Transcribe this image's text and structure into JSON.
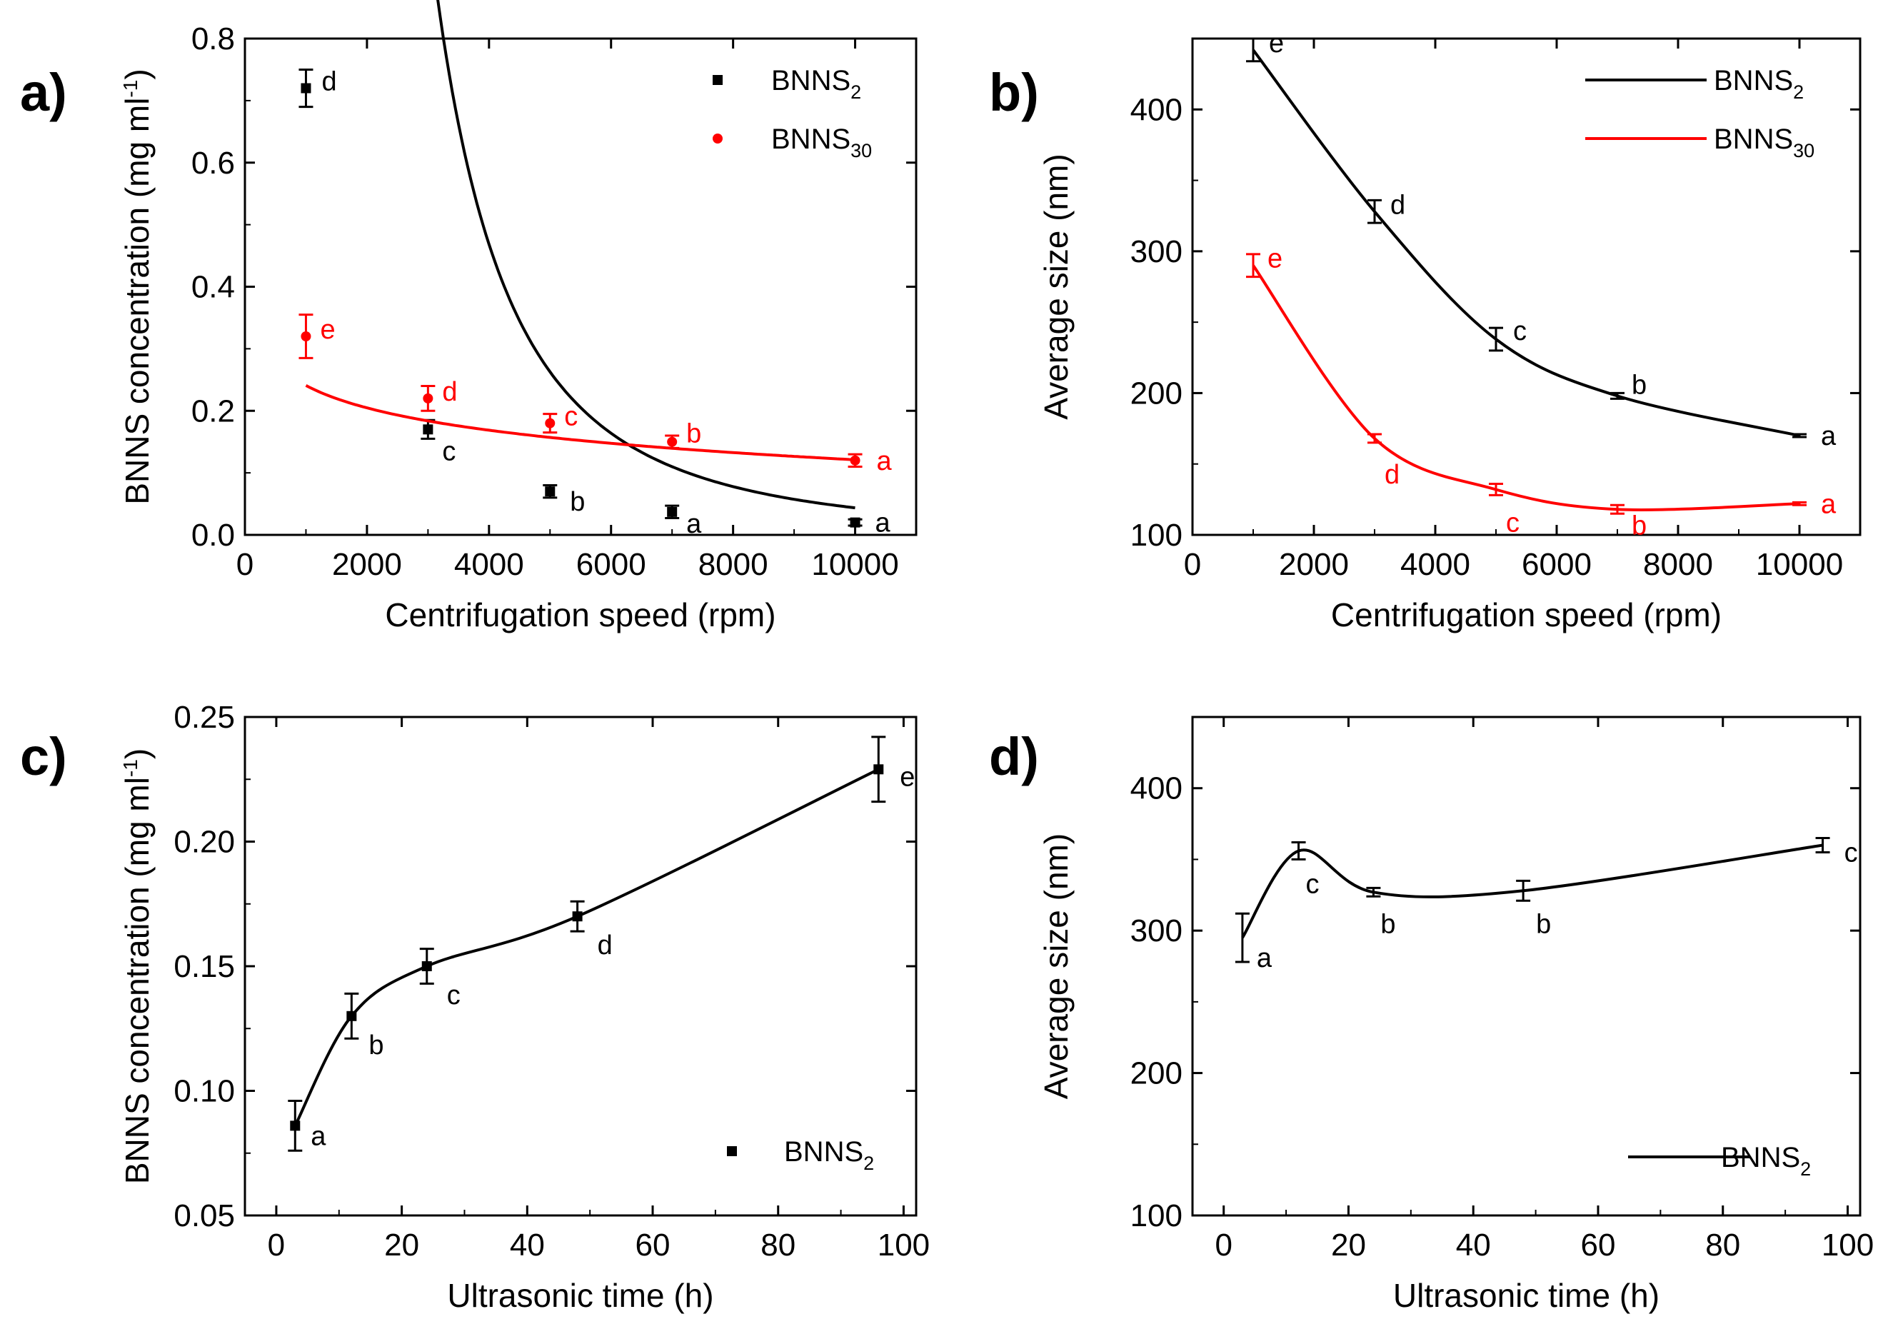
{
  "chart_data": [
    {
      "panel": "a)",
      "type": "scatter",
      "xlabel": "Centrifugation speed (rpm)",
      "ylabel": "BNNS concentration (mg ml",
      "ylabel_sup": "-1",
      "ylabel_end": ")",
      "xlim": [
        0,
        11000
      ],
      "ylim": [
        0,
        0.8
      ],
      "xticks": [
        0,
        2000,
        4000,
        6000,
        8000,
        10000
      ],
      "xtick_labels": [
        "0",
        "2000",
        "4000",
        "6000",
        "8000",
        "10000"
      ],
      "yticks": [
        0,
        0.2,
        0.4,
        0.6,
        0.8
      ],
      "ytick_labels": [
        "0.0",
        "0.2",
        "0.4",
        "0.6",
        "0.8"
      ],
      "legend_position": "top-right",
      "series": [
        {
          "name": "BNNS",
          "sub": "2",
          "color": "#000000",
          "marker": "square",
          "legend": "marker",
          "x": [
            1000,
            3000,
            5000,
            7000,
            10000
          ],
          "y": [
            0.72,
            0.17,
            0.07,
            0.037,
            0.02
          ],
          "err": [
            0.03,
            0.015,
            0.01,
            0.01,
            0.005
          ],
          "labels": [
            "d",
            "c",
            "b",
            "a",
            "a"
          ],
          "fit": {
            "kind": "power",
            "a": 1000000000.0,
            "b": -2.59
          }
        },
        {
          "name": "BNNS",
          "sub": "30",
          "color": "#ff0000",
          "marker": "circle",
          "legend": "marker",
          "x": [
            1000,
            3000,
            5000,
            7000,
            10000
          ],
          "y": [
            0.32,
            0.22,
            0.18,
            0.15,
            0.12
          ],
          "err": [
            0.035,
            0.02,
            0.015,
            0.01,
            0.01
          ],
          "labels": [
            "e",
            "d",
            "c",
            "b",
            "a"
          ],
          "fit": {
            "kind": "log",
            "a": 0.6,
            "b": -0.052
          }
        }
      ]
    },
    {
      "panel": "b)",
      "type": "line",
      "xlabel": "Centrifugation speed (rpm)",
      "ylabel": "Average size (nm)",
      "xlim": [
        0,
        11000
      ],
      "ylim": [
        100,
        450
      ],
      "xticks": [
        0,
        2000,
        4000,
        6000,
        8000,
        10000
      ],
      "xtick_labels": [
        "0",
        "2000",
        "4000",
        "6000",
        "8000",
        "10000"
      ],
      "yticks": [
        100,
        200,
        300,
        400
      ],
      "ytick_labels": [
        "100",
        "200",
        "300",
        "400"
      ],
      "legend_position": "top-right",
      "series": [
        {
          "name": "BNNS",
          "sub": "2",
          "color": "#000000",
          "marker": "none",
          "legend": "line",
          "x": [
            1000,
            3000,
            5000,
            7000,
            10000
          ],
          "y": [
            442,
            328,
            238,
            198,
            170
          ],
          "err": [
            8,
            8,
            8,
            2,
            1
          ],
          "labels": [
            "e",
            "d",
            "c",
            "b",
            "a"
          ]
        },
        {
          "name": "BNNS",
          "sub": "30",
          "color": "#ff0000",
          "marker": "none",
          "legend": "line",
          "x": [
            1000,
            3000,
            5000,
            7000,
            10000
          ],
          "y": [
            290,
            168,
            132,
            118,
            122
          ],
          "err": [
            8,
            3,
            4,
            3,
            1
          ],
          "labels": [
            "e",
            "d",
            "c",
            "b",
            "a"
          ]
        }
      ]
    },
    {
      "panel": "c)",
      "type": "line",
      "xlabel": "Ultrasonic  time (h)",
      "ylabel": "BNNS concentration (mg ml",
      "ylabel_sup": "-1",
      "ylabel_end": ")",
      "xlim": [
        -5,
        102
      ],
      "ylim": [
        0.05,
        0.25
      ],
      "xticks": [
        0,
        20,
        40,
        60,
        80,
        100
      ],
      "xtick_labels": [
        "0",
        "20",
        "40",
        "60",
        "80",
        "100"
      ],
      "yticks": [
        0.05,
        0.1,
        0.15,
        0.2,
        0.25
      ],
      "ytick_labels": [
        "0.05",
        "0.10",
        "0.15",
        "0.20",
        "0.25"
      ],
      "legend_position": "bottom-right",
      "series": [
        {
          "name": "BNNS",
          "sub": "2",
          "color": "#000000",
          "marker": "square",
          "legend": "marker",
          "x": [
            3,
            12,
            24,
            48,
            96
          ],
          "y": [
            0.086,
            0.13,
            0.15,
            0.17,
            0.229
          ],
          "err": [
            0.01,
            0.009,
            0.007,
            0.006,
            0.013
          ],
          "labels": [
            "a",
            "b",
            "c",
            "d",
            "e"
          ]
        }
      ]
    },
    {
      "panel": "d)",
      "type": "line",
      "xlabel": "Ultrasonic time (h)",
      "ylabel": "Average size (nm)",
      "xlim": [
        -5,
        102
      ],
      "ylim": [
        100,
        450
      ],
      "xticks": [
        0,
        20,
        40,
        60,
        80,
        100
      ],
      "xtick_labels": [
        "0",
        "20",
        "40",
        "60",
        "80",
        "100"
      ],
      "yticks": [
        100,
        200,
        300,
        400
      ],
      "ytick_labels": [
        "100",
        "200",
        "300",
        "400"
      ],
      "legend_position": "bottom-right",
      "series": [
        {
          "name": "BNNS",
          "sub": "2",
          "color": "#000000",
          "marker": "none",
          "legend": "line",
          "x": [
            3,
            12,
            24,
            48,
            96
          ],
          "y": [
            295,
            356,
            327,
            328,
            360
          ],
          "err": [
            17,
            6,
            3,
            7,
            5
          ],
          "labels": [
            "a",
            "c",
            "b",
            "b",
            "c"
          ]
        }
      ]
    }
  ]
}
